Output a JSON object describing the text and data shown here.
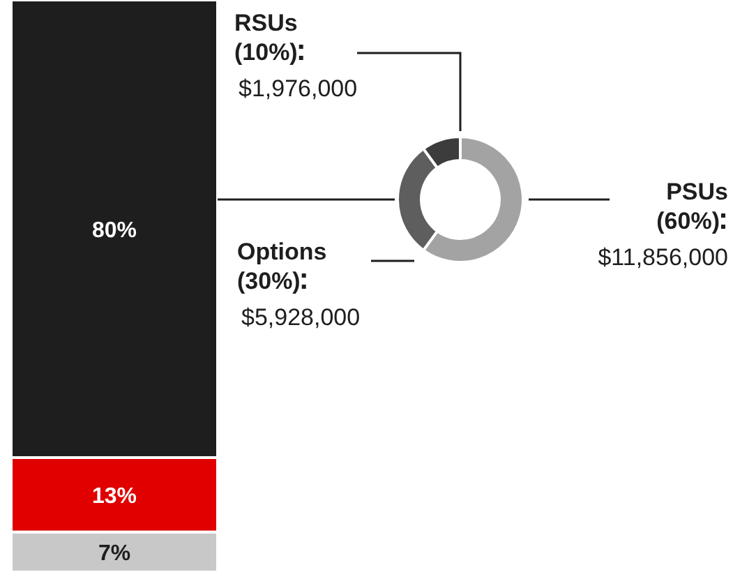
{
  "chart_data": [
    {
      "type": "bar",
      "stacked": true,
      "categories": [
        null
      ],
      "series": [
        {
          "color": "#c8c8c8",
          "values": [
            7
          ],
          "value_labels": [
            "7%"
          ]
        },
        {
          "color": "#e00000",
          "values": [
            13
          ],
          "value_labels": [
            "13%"
          ]
        },
        {
          "color": "#1e1e1e",
          "values": [
            80
          ],
          "value_labels": [
            "80%"
          ]
        }
      ]
    },
    {
      "type": "donut",
      "categories": [
        "PSUs (60%)",
        "Options (30%)",
        "RSUs (10%)"
      ],
      "values": [
        11856000,
        5928000,
        1976000
      ],
      "value_labels": [
        "$11,856,000",
        "$5,928,000",
        "$1,976,000"
      ],
      "colors": [
        "#a3a3a3",
        "#5e5e5e",
        "#3c3c3c"
      ]
    }
  ]
}
